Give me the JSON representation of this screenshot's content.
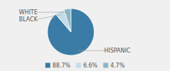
{
  "chart_data": {
    "type": "pie",
    "categories": [
      "HISPANIC",
      "BLACK",
      "WHITE"
    ],
    "values": [
      88.7,
      6.6,
      4.7
    ],
    "value_labels": [
      "88.7%",
      "6.6%",
      "4.7%"
    ],
    "colors": [
      "#3a7ca5",
      "#c5dce8",
      "#8ab5c8"
    ],
    "legend": "bottom"
  }
}
